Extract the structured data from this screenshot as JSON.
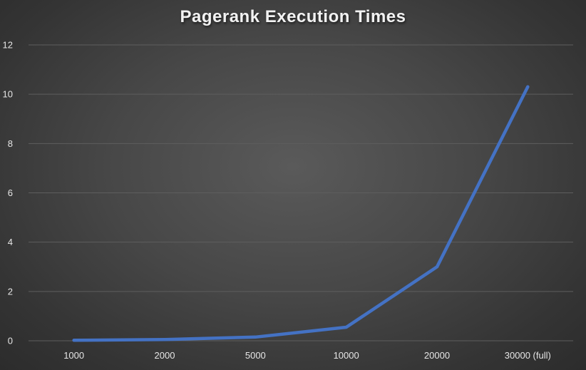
{
  "chart_data": {
    "type": "line",
    "title": "Pagerank Execution Times",
    "xlabel": "",
    "ylabel": "",
    "categories": [
      "1000",
      "2000",
      "5000",
      "10000",
      "20000",
      "30000 (full)"
    ],
    "series": [
      {
        "values": [
          0.02,
          0.05,
          0.15,
          0.55,
          3.0,
          10.3
        ]
      }
    ],
    "ylim": [
      0,
      12
    ],
    "yticks": [
      "0",
      "2",
      "4",
      "6",
      "8",
      "10",
      "12"
    ],
    "grid": true,
    "legend": "none",
    "colors": {
      "line": "#4472c4",
      "grid": "#5e5e5e",
      "text": "#e6e6e6"
    }
  }
}
